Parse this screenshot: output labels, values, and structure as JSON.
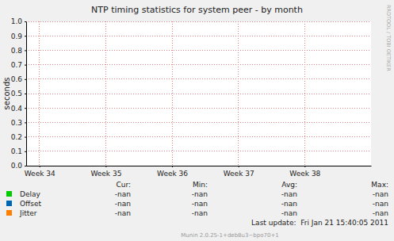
{
  "chart_data": {
    "type": "line",
    "title": "NTP timing statistics for system peer - by month",
    "ylabel": "seconds",
    "x": [],
    "xlim": [
      33.8,
      39.0
    ],
    "xticks": [
      {
        "value": 34,
        "label": "Week 34"
      },
      {
        "value": 35,
        "label": "Week 35"
      },
      {
        "value": 36,
        "label": "Week 36"
      },
      {
        "value": 37,
        "label": "Week 37"
      },
      {
        "value": 38,
        "label": "Week 38"
      }
    ],
    "ylim": [
      0,
      1
    ],
    "yticks": [
      {
        "value": 0,
        "label": "0.0"
      },
      0.1,
      0.2,
      0.3,
      0.4,
      0.5,
      0.6,
      0.7,
      0.8,
      0.9,
      {
        "value": 1,
        "label": "1.0"
      }
    ],
    "grid": true,
    "series": [
      {
        "name": "Delay",
        "color": "#00cc00",
        "values": [],
        "stats": [
          "-nan",
          "-nan",
          "-nan",
          "-nan"
        ]
      },
      {
        "name": "Offset",
        "color": "#0066b3",
        "values": [],
        "stats": [
          "-nan",
          "-nan",
          "-nan",
          "-nan"
        ]
      },
      {
        "name": "Jitter",
        "color": "#ff8000",
        "values": [],
        "stats": [
          "-nan",
          "-nan",
          "-nan",
          "-nan"
        ]
      }
    ],
    "stat_columns": [
      "Cur:",
      "Min:",
      "Avg:",
      "Max:"
    ],
    "last_update": "Last update:  Fri Jan 21 15:40:05 2011",
    "footer": "Munin 2.0.25-1+deb8u3~bpo70+1",
    "watermark": "RRDTOOL / TOBI OETIKER"
  }
}
